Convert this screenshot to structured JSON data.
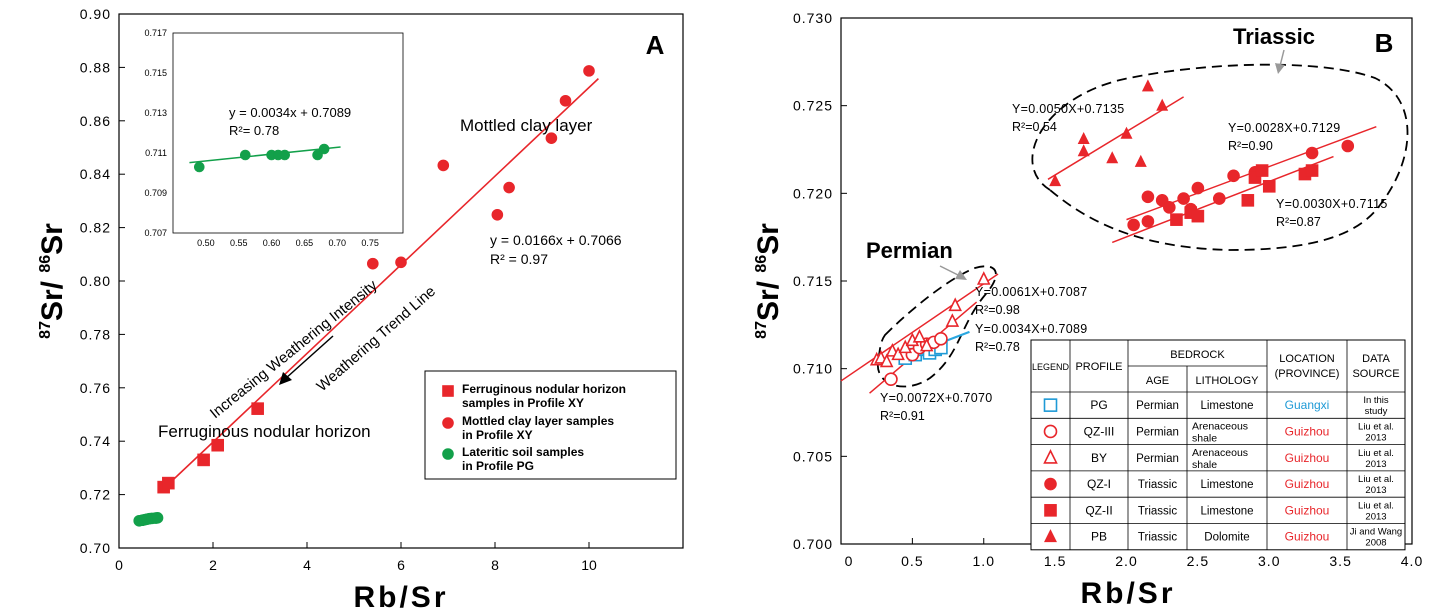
{
  "colors": {
    "red": "#e8262b",
    "green": "#12a04a",
    "blue": "#1e9ad6",
    "blue_line": "#2aa7e0",
    "black": "#000000",
    "guizhou": "#e8262b",
    "guangxi": "#1e9ad6"
  },
  "chart_data": [
    {
      "type": "scatter",
      "panel_label": "A",
      "xlabel": "Rb/Sr",
      "ylabel_html": [
        "87",
        "Sr/ ",
        "86",
        "Sr"
      ],
      "xlim": [
        0,
        12
      ],
      "ylim": [
        0.7,
        0.9
      ],
      "x_ticks": [
        "0",
        "2",
        "4",
        "6",
        "8",
        "10"
      ],
      "y_ticks": [
        "0.70",
        "0.72",
        "0.74",
        "0.76",
        "0.78",
        "0.80",
        "0.82",
        "0.84",
        "0.86",
        "0.88",
        "0.90"
      ],
      "series": [
        {
          "name": "Ferruginous nodular horizon samples in Profile XY",
          "marker": "square",
          "color": "red",
          "points": [
            [
              0.95,
              0.7228
            ],
            [
              1.05,
              0.7243
            ],
            [
              1.8,
              0.733
            ],
            [
              2.1,
              0.7385
            ],
            [
              2.95,
              0.7522
            ]
          ]
        },
        {
          "name": "Mottled clay layer samples in Profile XY",
          "marker": "circle",
          "color": "red",
          "points": [
            [
              5.4,
              0.8065
            ],
            [
              6.0,
              0.807
            ],
            [
              6.9,
              0.8433
            ],
            [
              8.05,
              0.8248
            ],
            [
              8.3,
              0.835
            ],
            [
              9.2,
              0.8535
            ],
            [
              9.5,
              0.8675
            ],
            [
              10.0,
              0.8787
            ]
          ]
        },
        {
          "name": "Lateritic soil samples in Profile PG",
          "marker": "circle",
          "color": "green",
          "points": [
            [
              0.43,
              0.7102
            ],
            [
              0.5,
              0.7104
            ],
            [
              0.55,
              0.7106
            ],
            [
              0.6,
              0.7108
            ],
            [
              0.65,
              0.711
            ],
            [
              0.7,
              0.7111
            ],
            [
              0.78,
              0.7112
            ],
            [
              0.82,
              0.7113
            ]
          ]
        }
      ],
      "trend_line": {
        "x": [
          0.9,
          10.2
        ],
        "y": [
          0.7214,
          0.8758
        ]
      },
      "annotations": {
        "equation": "y = 0.0166x + 0.7066",
        "r2": "R² = 0.97",
        "mottled_clay": "Mottled clay layer",
        "ferruginous": "Ferruginous nodular horizon",
        "increasing": "Increasing Weathering Intensity",
        "trend": "Weathering Trend Line"
      },
      "legend_position": "bottom-right",
      "inset": {
        "xlim": [
          0.45,
          0.8
        ],
        "ylim": [
          0.707,
          0.717
        ],
        "x_ticks": [
          "0.50",
          "0.55",
          "0.60",
          "0.65",
          "0.70",
          "0.75"
        ],
        "y_ticks": [
          "0.707",
          "0.709",
          "0.711",
          "0.713",
          "0.715",
          "0.717"
        ],
        "points": [
          [
            0.49,
            0.7103
          ],
          [
            0.56,
            0.7109
          ],
          [
            0.6,
            0.7109
          ],
          [
            0.61,
            0.7109
          ],
          [
            0.62,
            0.7109
          ],
          [
            0.67,
            0.7109
          ],
          [
            0.68,
            0.7112
          ]
        ],
        "fit_line": {
          "x": [
            0.475,
            0.705
          ],
          "y": [
            0.71052,
            0.7113
          ]
        },
        "equation": "y = 0.0034x + 0.7089",
        "r2": "R²= 0.78"
      }
    },
    {
      "type": "scatter",
      "panel_label": "B",
      "xlabel": "Rb/Sr",
      "ylabel_html": [
        "87",
        "Sr/ ",
        "86",
        "Sr"
      ],
      "xlim": [
        0,
        4.0
      ],
      "ylim": [
        0.7,
        0.73
      ],
      "x_ticks": [
        "0",
        "0.5",
        "1.0",
        "1.5",
        "2.0",
        "2.5",
        "3.0",
        "3.5",
        "4.0"
      ],
      "y_ticks": [
        "0.700",
        "0.705",
        "0.710",
        "0.715",
        "0.720",
        "0.725",
        "0.730"
      ],
      "group_labels": {
        "triassic": "Triassic",
        "permian": "Permian"
      },
      "series": [
        {
          "name": "PG",
          "marker": "square-open",
          "color": "blue",
          "points": [
            [
              0.45,
              0.7106
            ],
            [
              0.52,
              0.7108
            ],
            [
              0.57,
              0.7111
            ],
            [
              0.6,
              0.7112
            ],
            [
              0.62,
              0.7109
            ],
            [
              0.66,
              0.7111
            ],
            [
              0.7,
              0.7112
            ]
          ]
        },
        {
          "name": "QZ-III",
          "marker": "circle-open",
          "color": "red",
          "points": [
            [
              0.35,
              0.7094
            ],
            [
              0.5,
              0.7108
            ],
            [
              0.55,
              0.7112
            ],
            [
              0.6,
              0.7114
            ],
            [
              0.65,
              0.7115
            ],
            [
              0.7,
              0.7117
            ]
          ]
        },
        {
          "name": "BY",
          "marker": "triangle-open",
          "color": "red",
          "points": [
            [
              0.25,
              0.7105
            ],
            [
              0.28,
              0.7106
            ],
            [
              0.32,
              0.7104
            ],
            [
              0.36,
              0.711
            ],
            [
              0.4,
              0.7108
            ],
            [
              0.45,
              0.7112
            ],
            [
              0.5,
              0.7116
            ],
            [
              0.55,
              0.7118
            ],
            [
              0.6,
              0.7113
            ],
            [
              0.78,
              0.7127
            ],
            [
              0.8,
              0.7136
            ],
            [
              1.0,
              0.7151
            ]
          ]
        },
        {
          "name": "QZ-I",
          "marker": "circle",
          "color": "red",
          "points": [
            [
              2.05,
              0.7182
            ],
            [
              2.15,
              0.7184
            ],
            [
              2.15,
              0.7198
            ],
            [
              2.25,
              0.7196
            ],
            [
              2.3,
              0.7192
            ],
            [
              2.4,
              0.7197
            ],
            [
              2.45,
              0.7191
            ],
            [
              2.5,
              0.7203
            ],
            [
              2.65,
              0.7197
            ],
            [
              2.75,
              0.721
            ],
            [
              2.9,
              0.7212
            ],
            [
              3.3,
              0.7223
            ],
            [
              3.55,
              0.7227
            ]
          ]
        },
        {
          "name": "QZ-II",
          "marker": "square",
          "color": "red",
          "points": [
            [
              2.35,
              0.7185
            ],
            [
              2.45,
              0.7189
            ],
            [
              2.5,
              0.7187
            ],
            [
              2.85,
              0.7196
            ],
            [
              2.9,
              0.7209
            ],
            [
              2.95,
              0.7213
            ],
            [
              3.0,
              0.7204
            ],
            [
              3.25,
              0.7211
            ],
            [
              3.3,
              0.7213
            ]
          ]
        },
        {
          "name": "PB",
          "marker": "triangle",
          "color": "red",
          "points": [
            [
              1.5,
              0.7207
            ],
            [
              1.7,
              0.7224
            ],
            [
              1.7,
              0.7231
            ],
            [
              1.9,
              0.722
            ],
            [
              2.0,
              0.7234
            ],
            [
              2.1,
              0.7218
            ],
            [
              2.15,
              0.7261
            ],
            [
              2.25,
              0.725
            ]
          ]
        }
      ],
      "fit_lines": [
        {
          "label": "Y=0.0050X+0.7135",
          "r2": "R²=0.54",
          "x": [
            1.45,
            2.4
          ],
          "y": [
            0.7208,
            0.7255
          ],
          "color": "red"
        },
        {
          "label": "Y=0.0028X+0.7129",
          "r2": "R²=0.90",
          "x": [
            2.0,
            3.75
          ],
          "y": [
            0.7185,
            0.7238
          ],
          "color": "red"
        },
        {
          "label": "Y=0.0030X+0.7115",
          "r2": "R²=0.87",
          "x": [
            1.9,
            3.45
          ],
          "y": [
            0.7172,
            0.7221
          ],
          "color": "red"
        },
        {
          "label": "Y=0.0061X+0.7087",
          "r2": "R²=0.98",
          "x": [
            0.0,
            1.1
          ],
          "y": [
            0.7093,
            0.7154
          ],
          "color": "red"
        },
        {
          "label": "Y=0.0034X+0.7089",
          "r2": "R²=0.78",
          "x": [
            0.45,
            0.9
          ],
          "y": [
            0.7107,
            0.7121
          ],
          "color": "blue_line"
        },
        {
          "label": "Y=0.0072X+0.7070",
          "r2": "R²=0.91",
          "x": [
            0.2,
            0.95
          ],
          "y": [
            0.7086,
            0.7138
          ],
          "color": "red"
        }
      ],
      "table": {
        "headers": {
          "legend": "LEGEND",
          "profile": "PROFILE",
          "bedrock": "BEDROCK",
          "age": "AGE",
          "lithology": "LITHOLOGY",
          "location": [
            "LOCATION",
            "(PROVINCE)"
          ],
          "source": [
            "DATA",
            "SOURCE"
          ]
        },
        "rows": [
          {
            "marker": "square-open",
            "color": "blue",
            "profile": "PG",
            "age": "Permian",
            "lithology": [
              "Limestone"
            ],
            "location": "Guangxi",
            "location_color": "guangxi",
            "source": [
              "In this",
              "study"
            ]
          },
          {
            "marker": "circle-open",
            "color": "red",
            "profile": "QZ-III",
            "age": "Permian",
            "lithology": [
              "Arenaceous",
              "shale"
            ],
            "location": "Guizhou",
            "location_color": "guizhou",
            "source": [
              "Liu et al.",
              "2013"
            ]
          },
          {
            "marker": "triangle-open",
            "color": "red",
            "profile": "BY",
            "age": "Permian",
            "lithology": [
              "Arenaceous",
              "shale"
            ],
            "location": "Guizhou",
            "location_color": "guizhou",
            "source": [
              "Liu et al.",
              "2013"
            ]
          },
          {
            "marker": "circle",
            "color": "red",
            "profile": "QZ-I",
            "age": "Triassic",
            "lithology": [
              "Limestone"
            ],
            "location": "Guizhou",
            "location_color": "guizhou",
            "source": [
              "Liu et al.",
              "2013"
            ]
          },
          {
            "marker": "square",
            "color": "red",
            "profile": "QZ-II",
            "age": "Triassic",
            "lithology": [
              "Limestone"
            ],
            "location": "Guizhou",
            "location_color": "guizhou",
            "source": [
              "Liu et al.",
              "2013"
            ]
          },
          {
            "marker": "triangle",
            "color": "red",
            "profile": "PB",
            "age": "Triassic",
            "lithology": [
              "Dolomite"
            ],
            "location": "Guizhou",
            "location_color": "guizhou",
            "source": [
              "Ji and Wang",
              "2008"
            ]
          }
        ]
      }
    }
  ]
}
